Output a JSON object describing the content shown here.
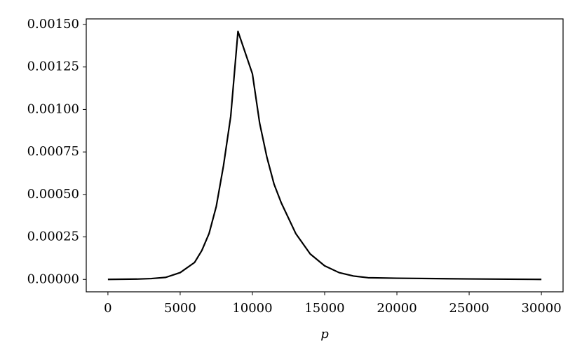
{
  "chart_data": {
    "type": "line",
    "xlabel": "p",
    "x": [
      0,
      2000,
      3000,
      4000,
      5000,
      6000,
      6500,
      7000,
      7500,
      8000,
      8500,
      9000,
      10000,
      10500,
      11000,
      11500,
      12000,
      13000,
      14000,
      15000,
      16000,
      17000,
      18000,
      20000,
      25000,
      30000
    ],
    "series": [
      {
        "color": "#000000",
        "values": [
          0,
          2e-06,
          5e-06,
          1.2e-05,
          4e-05,
          0.0001,
          0.00017,
          0.00027,
          0.00043,
          0.00067,
          0.00096,
          0.00146,
          0.00121,
          0.00092,
          0.00072,
          0.00056,
          0.00045,
          0.00027,
          0.00015,
          8e-05,
          4e-05,
          2e-05,
          1e-05,
          7e-06,
          3e-06,
          0
        ]
      }
    ],
    "xlim": [
      -1500,
      31500
    ],
    "ylim": [
      -7.3e-05,
      0.001533
    ],
    "xticks": [
      0,
      5000,
      10000,
      15000,
      20000,
      25000,
      30000
    ],
    "yticks": [
      {
        "value": 0,
        "label": "0.00000"
      },
      {
        "value": 0.00025,
        "label": "0.00025"
      },
      {
        "value": 0.0005,
        "label": "0.00050"
      },
      {
        "value": 0.00075,
        "label": "0.00075"
      },
      {
        "value": 0.001,
        "label": "0.00100"
      },
      {
        "value": 0.00125,
        "label": "0.00125"
      },
      {
        "value": 0.0015,
        "label": "0.00150"
      }
    ],
    "grid": false
  }
}
